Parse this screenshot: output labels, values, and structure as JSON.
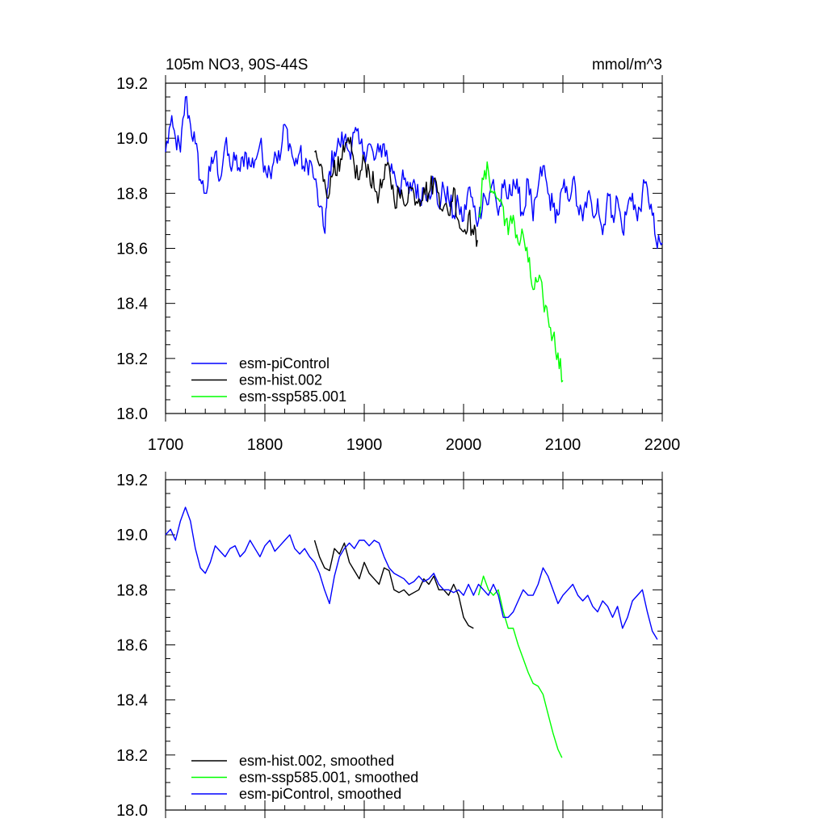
{
  "chart_data": [
    {
      "type": "line",
      "title": "105m NO3, 90S-44S",
      "units": "mmol/m^3",
      "xlim": [
        1700,
        2200
      ],
      "ylim": [
        18.0,
        19.2
      ],
      "xticks": [
        "1700",
        "1800",
        "1900",
        "2000",
        "2100",
        "2200"
      ],
      "yticks": [
        "18.0",
        "18.2",
        "18.4",
        "18.6",
        "18.8",
        "19.0",
        "19.2"
      ],
      "legend_position": "bottom-left",
      "series": [
        {
          "name": "esm-piControl",
          "color": "#0000ff",
          "x": [
            1700,
            1705,
            1710,
            1715,
            1720,
            1725,
            1730,
            1735,
            1740,
            1745,
            1750,
            1755,
            1760,
            1765,
            1770,
            1775,
            1780,
            1785,
            1790,
            1795,
            1800,
            1805,
            1810,
            1815,
            1820,
            1825,
            1830,
            1835,
            1840,
            1845,
            1850,
            1855,
            1860,
            1862,
            1865,
            1870,
            1875,
            1880,
            1885,
            1890,
            1895,
            1900,
            1905,
            1910,
            1915,
            1920,
            1925,
            1930,
            1935,
            1940,
            1945,
            1950,
            1955,
            1960,
            1965,
            1970,
            1975,
            1980,
            1985,
            1990,
            1995,
            2000,
            2005,
            2010,
            2015,
            2020,
            2025,
            2030,
            2035,
            2040,
            2045,
            2050,
            2055,
            2060,
            2065,
            2070,
            2075,
            2080,
            2085,
            2090,
            2095,
            2100,
            2105,
            2110,
            2115,
            2120,
            2125,
            2130,
            2135,
            2140,
            2145,
            2150,
            2155,
            2160,
            2165,
            2170,
            2175,
            2180,
            2185,
            2190,
            2195,
            2200
          ],
          "y": [
            18.95,
            19.05,
            19.0,
            18.95,
            19.15,
            19.05,
            18.98,
            18.85,
            18.8,
            18.88,
            18.95,
            18.85,
            18.98,
            18.9,
            18.92,
            18.88,
            18.95,
            18.9,
            18.92,
            18.98,
            18.9,
            18.88,
            18.95,
            18.92,
            19.05,
            18.98,
            18.9,
            18.95,
            18.88,
            18.92,
            18.85,
            18.75,
            18.66,
            18.75,
            18.88,
            18.95,
            18.98,
            19.0,
            18.95,
            19.02,
            18.98,
            18.95,
            18.98,
            18.92,
            18.95,
            18.98,
            18.9,
            18.88,
            18.82,
            18.85,
            18.8,
            18.85,
            18.78,
            18.82,
            18.8,
            18.85,
            18.75,
            18.82,
            18.78,
            18.72,
            18.76,
            18.7,
            18.82,
            18.75,
            18.7,
            18.8,
            18.76,
            18.85,
            18.72,
            18.82,
            18.78,
            18.85,
            18.8,
            18.72,
            18.85,
            18.7,
            18.82,
            18.9,
            18.8,
            18.75,
            18.72,
            18.82,
            18.78,
            18.85,
            18.75,
            18.7,
            18.8,
            18.72,
            18.78,
            18.65,
            18.8,
            18.72,
            18.78,
            18.66,
            18.75,
            18.8,
            18.7,
            18.8,
            18.82,
            18.72,
            18.6,
            18.62
          ],
          "style": "noisy"
        },
        {
          "name": "esm-hist.002",
          "color": "#000000",
          "x": [
            1850,
            1855,
            1860,
            1865,
            1870,
            1875,
            1880,
            1885,
            1890,
            1895,
            1900,
            1905,
            1910,
            1915,
            1920,
            1925,
            1930,
            1935,
            1940,
            1945,
            1950,
            1955,
            1960,
            1965,
            1970,
            1975,
            1980,
            1985,
            1990,
            1995,
            2000,
            2005,
            2010,
            2014
          ],
          "y": [
            18.95,
            18.9,
            18.85,
            18.8,
            18.92,
            18.88,
            18.95,
            18.98,
            18.9,
            18.85,
            18.92,
            18.88,
            18.82,
            18.8,
            18.85,
            18.9,
            18.78,
            18.8,
            18.76,
            18.82,
            18.8,
            18.78,
            18.82,
            18.8,
            18.85,
            18.8,
            18.75,
            18.72,
            18.82,
            18.7,
            18.66,
            18.72,
            18.65,
            18.63
          ],
          "style": "noisy"
        },
        {
          "name": "esm-ssp585.001",
          "color": "#00ff00",
          "x": [
            2015,
            2020,
            2025,
            2030,
            2035,
            2040,
            2045,
            2050,
            2055,
            2060,
            2065,
            2070,
            2075,
            2080,
            2085,
            2090,
            2095,
            2100
          ],
          "y": [
            18.72,
            18.85,
            18.88,
            18.8,
            18.78,
            18.75,
            18.65,
            18.72,
            18.62,
            18.65,
            18.55,
            18.45,
            18.48,
            18.42,
            18.35,
            18.28,
            18.22,
            18.12
          ],
          "style": "noisy"
        }
      ]
    },
    {
      "type": "line",
      "xlim": [
        1700,
        2200
      ],
      "ylim": [
        18.0,
        19.2
      ],
      "yticks": [
        "18.0",
        "18.2",
        "18.4",
        "18.6",
        "18.8",
        "19.0",
        "19.2"
      ],
      "legend_position": "bottom-left",
      "series": [
        {
          "name": "esm-hist.002, smoothed",
          "color": "#000000",
          "x": [
            1850,
            1855,
            1860,
            1865,
            1870,
            1875,
            1880,
            1885,
            1890,
            1895,
            1900,
            1905,
            1910,
            1915,
            1920,
            1925,
            1930,
            1935,
            1940,
            1945,
            1950,
            1955,
            1960,
            1965,
            1970,
            1975,
            1980,
            1985,
            1990,
            1995,
            2000,
            2005,
            2010
          ],
          "y": [
            18.98,
            18.92,
            18.88,
            18.87,
            18.95,
            18.93,
            18.97,
            18.9,
            18.87,
            18.84,
            18.9,
            18.86,
            18.84,
            18.82,
            18.88,
            18.87,
            18.8,
            18.79,
            18.8,
            18.78,
            18.79,
            18.8,
            18.84,
            18.82,
            18.85,
            18.8,
            18.8,
            18.78,
            18.82,
            18.78,
            18.7,
            18.67,
            18.66
          ],
          "style": "smooth"
        },
        {
          "name": "esm-ssp585.001, smoothed",
          "color": "#00ff00",
          "x": [
            2015,
            2020,
            2025,
            2030,
            2035,
            2040,
            2045,
            2050,
            2055,
            2060,
            2065,
            2070,
            2075,
            2080,
            2085,
            2090,
            2095,
            2099
          ],
          "y": [
            18.78,
            18.85,
            18.8,
            18.78,
            18.8,
            18.72,
            18.66,
            18.66,
            18.6,
            18.55,
            18.5,
            18.46,
            18.45,
            18.42,
            18.35,
            18.28,
            18.22,
            18.19
          ],
          "style": "smooth"
        },
        {
          "name": "esm-piControl, smoothed",
          "color": "#0000ff",
          "x": [
            1700,
            1705,
            1710,
            1715,
            1720,
            1725,
            1730,
            1735,
            1740,
            1745,
            1750,
            1755,
            1760,
            1765,
            1770,
            1775,
            1780,
            1785,
            1790,
            1795,
            1800,
            1805,
            1810,
            1815,
            1820,
            1825,
            1830,
            1835,
            1840,
            1845,
            1850,
            1855,
            1860,
            1865,
            1870,
            1875,
            1880,
            1885,
            1890,
            1895,
            1900,
            1905,
            1910,
            1915,
            1920,
            1925,
            1930,
            1935,
            1940,
            1945,
            1950,
            1955,
            1960,
            1965,
            1970,
            1975,
            1980,
            1985,
            1990,
            1995,
            2000,
            2005,
            2010,
            2015,
            2020,
            2025,
            2030,
            2035,
            2040,
            2045,
            2050,
            2055,
            2060,
            2065,
            2070,
            2075,
            2080,
            2085,
            2090,
            2095,
            2100,
            2105,
            2110,
            2115,
            2120,
            2125,
            2130,
            2135,
            2140,
            2145,
            2150,
            2155,
            2160,
            2165,
            2170,
            2175,
            2180,
            2185,
            2190,
            2195
          ],
          "y": [
            19.0,
            19.02,
            18.98,
            19.05,
            19.1,
            19.05,
            18.95,
            18.88,
            18.86,
            18.9,
            18.96,
            18.94,
            18.92,
            18.95,
            18.96,
            18.92,
            18.94,
            18.98,
            18.95,
            18.92,
            18.96,
            18.98,
            18.94,
            18.96,
            18.98,
            19.0,
            18.95,
            18.93,
            18.95,
            18.92,
            18.9,
            18.86,
            18.8,
            18.75,
            18.85,
            18.92,
            18.95,
            18.97,
            18.95,
            18.98,
            18.98,
            18.96,
            18.98,
            18.97,
            18.92,
            18.88,
            18.86,
            18.85,
            18.84,
            18.82,
            18.83,
            18.85,
            18.83,
            18.84,
            18.86,
            18.82,
            18.8,
            18.8,
            18.79,
            18.8,
            18.78,
            18.82,
            18.78,
            18.82,
            18.8,
            18.78,
            18.82,
            18.78,
            18.7,
            18.7,
            18.72,
            18.76,
            18.8,
            18.78,
            18.78,
            18.82,
            18.88,
            18.85,
            18.8,
            18.75,
            18.78,
            18.8,
            18.82,
            18.78,
            18.76,
            18.78,
            18.74,
            18.72,
            18.76,
            18.74,
            18.7,
            18.74,
            18.66,
            18.7,
            18.76,
            18.78,
            18.8,
            18.72,
            18.65,
            18.62
          ],
          "style": "smooth"
        }
      ]
    }
  ]
}
